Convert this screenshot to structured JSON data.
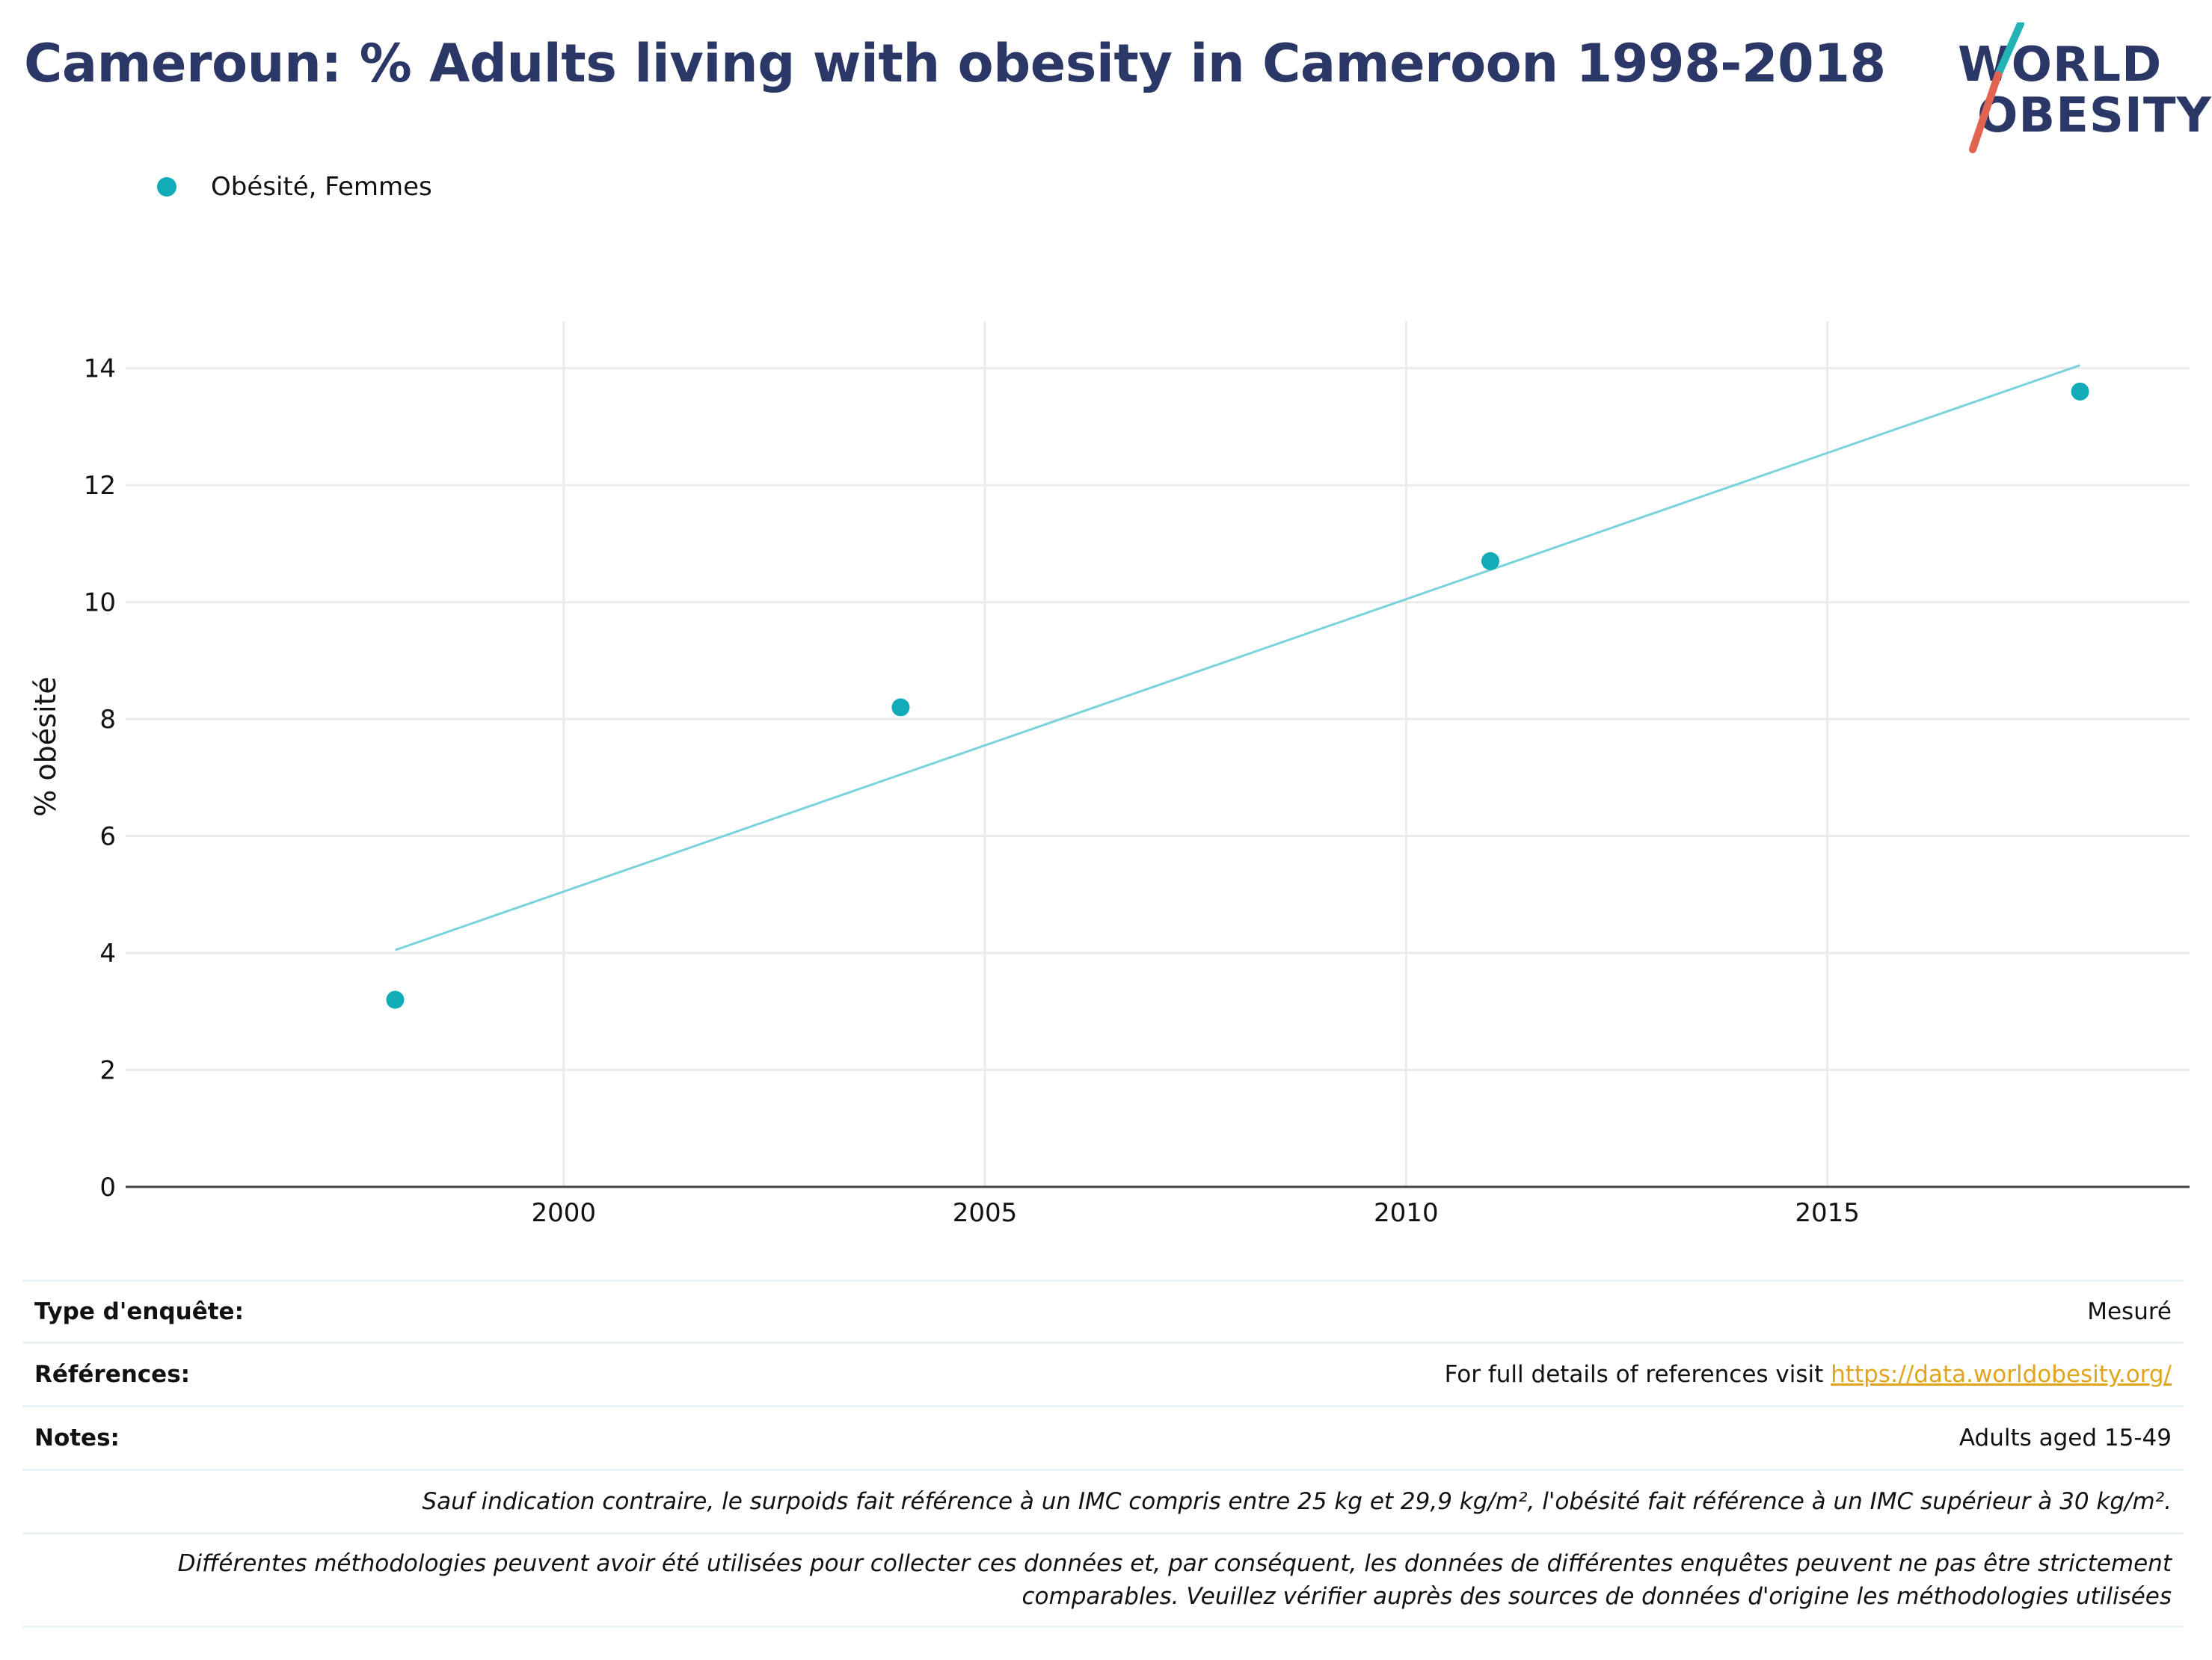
{
  "header": {
    "title": "Cameroun: % Adults living with obesity in Cameroon 1998-2018"
  },
  "logo": {
    "line1": "WORLD",
    "line2": "OBESITY",
    "colors": {
      "text": "#2b3766",
      "slash_top": "#22b3b7",
      "slash_bottom": "#e2634f"
    }
  },
  "chart_data": {
    "type": "scatter",
    "title": "Cameroun: % Adults living with obesity in Cameroon 1998-2018",
    "ylabel": "% obésité",
    "xlabel": "",
    "series": [
      {
        "name": "Obésité, Femmes",
        "color": "#12acb8",
        "x": [
          1998,
          2004,
          2011,
          2018
        ],
        "y": [
          3.2,
          8.2,
          10.7,
          13.6
        ]
      }
    ],
    "trendline": {
      "x": [
        1998,
        2018
      ],
      "y": [
        4.05,
        14.05
      ],
      "color": "#7ad3da"
    },
    "xlim": [
      1994.8,
      2019.3
    ],
    "ylim": [
      0,
      14.8
    ],
    "xticks": [
      2000,
      2005,
      2010,
      2015
    ],
    "yticks": [
      0,
      2,
      4,
      6,
      8,
      10,
      12,
      14
    ],
    "grid": true,
    "legend_position": "top-left"
  },
  "footer": {
    "survey_type_label": "Type d'enquête:",
    "survey_type_value": "Mesuré",
    "references_label": "Références:",
    "references_text": "For full details of references visit ",
    "references_link": "https://data.worldobesity.org/",
    "notes_label": "Notes:",
    "notes_value": "Adults aged 15-49",
    "definition_note": "Sauf indication contraire, le surpoids fait référence à un IMC compris entre 25 kg et 29,9 kg/m², l'obésité fait référence à un IMC supérieur à 30 kg/m².",
    "methodology_note_line1": "Différentes méthodologies peuvent avoir été utilisées pour collecter ces données et, par conséquent, les données de différentes enquêtes peuvent ne pas être strictement",
    "methodology_note_line2": "comparables. Veuillez vérifier auprès des sources de données d'origine les méthodologies utilisées"
  }
}
